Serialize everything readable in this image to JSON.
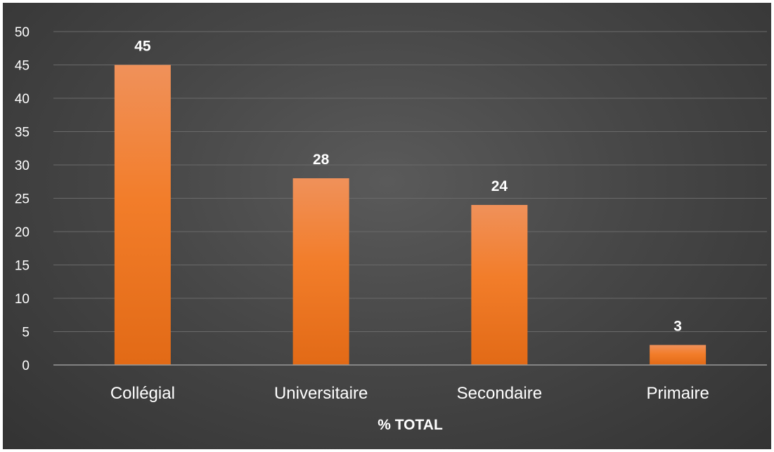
{
  "chart_data": {
    "type": "bar",
    "categories": [
      "Collégial",
      "Universitaire",
      "Secondaire",
      "Primaire"
    ],
    "values": [
      45,
      28,
      24,
      3
    ],
    "data_labels": [
      "45",
      "28",
      "24",
      "3"
    ],
    "xlabel": "% TOTAL",
    "ylabel": "",
    "ylim": [
      0,
      50
    ],
    "yticks": [
      0,
      5,
      10,
      15,
      20,
      25,
      30,
      35,
      40,
      45,
      50
    ],
    "grid": true,
    "legend": "none",
    "colors": {
      "bar_top": "#f0915a",
      "bar_mid": "#f27d2a",
      "bar_bottom": "#e26a16",
      "background": "#474747",
      "gridline": "#6a6a6a",
      "axis_line": "#9a9a9a",
      "text": "#ffffff"
    }
  }
}
